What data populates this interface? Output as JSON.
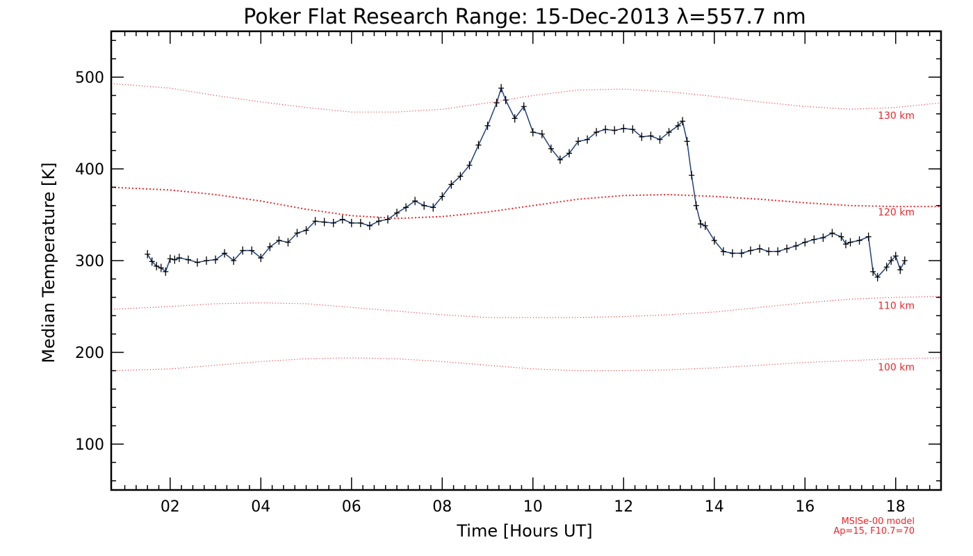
{
  "chart_data": {
    "type": "line",
    "title": "Poker Flat Research Range: 15-Dec-2013 λ=557.7 nm",
    "xlabel": "Time [Hours UT]",
    "ylabel": "Median Temperature [K]",
    "xlim": [
      0.7,
      19.0
    ],
    "ylim": [
      50,
      550
    ],
    "x_ticks": [
      2,
      4,
      6,
      8,
      10,
      12,
      14,
      16,
      18
    ],
    "x_tick_labels": [
      "02",
      "04",
      "06",
      "08",
      "10",
      "12",
      "14",
      "16",
      "18"
    ],
    "y_ticks": [
      100,
      200,
      300,
      400,
      500
    ],
    "y_tick_labels": [
      "100",
      "200",
      "300",
      "400",
      "500"
    ],
    "grid": false,
    "series": [
      {
        "color": "#1f3f7a",
        "marker": "+",
        "x": [
          1.5,
          1.6,
          1.7,
          1.8,
          1.9,
          2.0,
          2.1,
          2.2,
          2.4,
          2.6,
          2.8,
          3.0,
          3.2,
          3.4,
          3.6,
          3.8,
          4.0,
          4.2,
          4.4,
          4.6,
          4.8,
          5.0,
          5.2,
          5.4,
          5.6,
          5.8,
          6.0,
          6.2,
          6.4,
          6.6,
          6.8,
          7.0,
          7.2,
          7.4,
          7.6,
          7.8,
          8.0,
          8.2,
          8.4,
          8.6,
          8.8,
          9.0,
          9.2,
          9.3,
          9.4,
          9.6,
          9.8,
          10.0,
          10.2,
          10.4,
          10.6,
          10.8,
          11.0,
          11.2,
          11.4,
          11.6,
          11.8,
          12.0,
          12.2,
          12.4,
          12.6,
          12.8,
          13.0,
          13.2,
          13.3,
          13.4,
          13.5,
          13.6,
          13.7,
          13.8,
          14.0,
          14.2,
          14.4,
          14.6,
          14.8,
          15.0,
          15.2,
          15.4,
          15.6,
          15.8,
          16.0,
          16.2,
          16.4,
          16.6,
          16.8,
          16.9,
          17.0,
          17.2,
          17.4,
          17.5,
          17.6,
          17.8,
          17.9,
          18.0,
          18.1,
          18.2
        ],
        "values": [
          307,
          299,
          294,
          292,
          288,
          302,
          301,
          303,
          301,
          298,
          300,
          301,
          308,
          300,
          311,
          311,
          303,
          315,
          322,
          320,
          330,
          333,
          343,
          342,
          341,
          345,
          341,
          341,
          338,
          343,
          345,
          352,
          358,
          365,
          360,
          358,
          370,
          383,
          392,
          404,
          426,
          447,
          472,
          488,
          475,
          455,
          468,
          440,
          438,
          422,
          410,
          417,
          430,
          432,
          440,
          443,
          442,
          444,
          443,
          435,
          436,
          432,
          440,
          447,
          452,
          430,
          393,
          360,
          340,
          338,
          322,
          310,
          308,
          308,
          311,
          313,
          310,
          310,
          313,
          316,
          320,
          323,
          325,
          330,
          326,
          318,
          320,
          322,
          326,
          288,
          282,
          293,
          300,
          305,
          290,
          300
        ]
      }
    ],
    "model_curves": [
      {
        "label": "130 km",
        "x": [
          0.7,
          2.0,
          3.0,
          4.0,
          5.0,
          6.0,
          7.0,
          8.0,
          9.0,
          10.0,
          11.0,
          12.0,
          13.0,
          14.0,
          15.0,
          16.0,
          17.0,
          18.0,
          19.0
        ],
        "values": [
          493,
          488,
          480,
          473,
          467,
          462,
          462,
          465,
          472,
          480,
          486,
          487,
          484,
          479,
          473,
          468,
          465,
          467,
          472
        ]
      },
      {
        "label": "120 km",
        "x": [
          0.7,
          2.0,
          3.0,
          4.0,
          5.0,
          6.0,
          7.0,
          8.0,
          9.0,
          10.0,
          11.0,
          12.0,
          13.0,
          14.0,
          15.0,
          16.0,
          17.0,
          18.0,
          19.0
        ],
        "values": [
          380,
          377,
          372,
          365,
          356,
          349,
          346,
          348,
          353,
          360,
          367,
          371,
          372,
          370,
          367,
          363,
          360,
          359,
          359
        ]
      },
      {
        "label": "110 km",
        "x": [
          0.7,
          2.0,
          3.0,
          4.0,
          5.0,
          6.0,
          7.0,
          8.0,
          9.0,
          10.0,
          11.0,
          12.0,
          13.0,
          14.0,
          15.0,
          16.0,
          17.0,
          18.0,
          19.0
        ],
        "values": [
          247,
          250,
          253,
          254,
          253,
          249,
          245,
          241,
          238,
          238,
          238,
          239,
          241,
          244,
          249,
          254,
          258,
          260,
          261
        ]
      },
      {
        "label": "100 km",
        "x": [
          0.7,
          2.0,
          3.0,
          4.0,
          5.0,
          6.0,
          7.0,
          8.0,
          9.0,
          10.0,
          11.0,
          12.0,
          13.0,
          14.0,
          15.0,
          16.0,
          17.0,
          18.0,
          19.0
        ],
        "values": [
          180,
          182,
          186,
          190,
          193,
          194,
          193,
          190,
          186,
          182,
          180,
          180,
          181,
          183,
          186,
          189,
          191,
          193,
          194
        ]
      }
    ],
    "model_color": "#e8262a",
    "model_note": [
      "MSISe-00 model",
      "Ap=15, F10.7=70"
    ]
  }
}
